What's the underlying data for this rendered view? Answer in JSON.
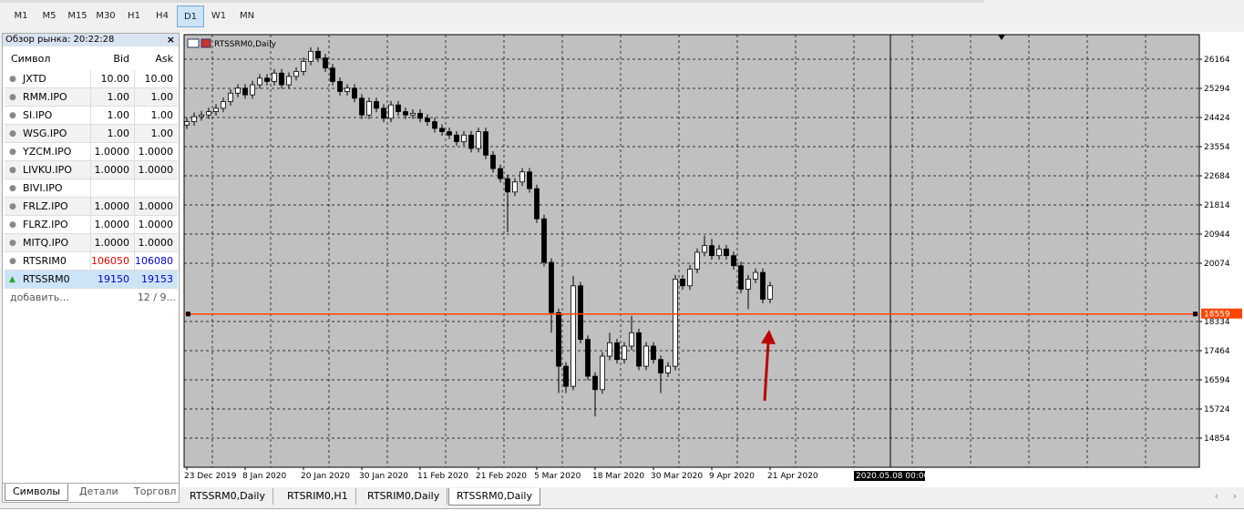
{
  "toolbar": {
    "timeframes": [
      "M1",
      "M5",
      "M15",
      "M30",
      "H1",
      "H4",
      "D1",
      "W1",
      "MN"
    ],
    "active": "D1"
  },
  "market_watch": {
    "title": "Обзор рынка: 20:22:28",
    "headers": [
      "Символ",
      "Bid",
      "Ask"
    ],
    "rows": [
      [
        "JXTD",
        "10.00",
        "10.00"
      ],
      [
        "RMM.IPO",
        "1.00",
        "1.00"
      ],
      [
        "SI.IPO",
        "1.00",
        "1.00"
      ],
      [
        "WSG.IPO",
        "1.00",
        "1.00"
      ],
      [
        "YZCM.IPO",
        "1.0000",
        "1.0000"
      ],
      [
        "LIVKU.IPO",
        "1.0000",
        "1.0000"
      ],
      [
        "BIVI.IPO",
        null,
        null
      ],
      [
        "FRLZ.IPO",
        "1.0000",
        "1.0000"
      ],
      [
        "FLRZ.IPO",
        "1.0000",
        "1.0000"
      ],
      [
        "MITQ.IPO",
        "1.0000",
        "1.0000"
      ],
      [
        "RTSRIM0",
        "106050",
        "106080"
      ],
      [
        "RTSSRM0",
        "19150",
        "19153"
      ]
    ],
    "add_label": "добавить...",
    "count": "12 / 9...",
    "tabs": [
      "Символы",
      "Детали",
      "Торговл"
    ]
  },
  "chart_tabs": [
    "RTSSRM0,Daily",
    "RTSRIM0,H1",
    "RTSRIM0,Daily",
    "RTSSRM0,Daily"
  ],
  "chart_data": {
    "type": "candlestick",
    "title": "RTSSRM0,Daily",
    "categories": [
      "23 Dec 2019",
      null,
      null,
      null,
      null,
      null,
      null,
      null,
      "8 Jan 2020",
      null,
      null,
      null,
      null,
      null,
      null,
      null,
      "20 Jan 2020",
      null,
      null,
      null,
      null,
      null,
      null,
      null,
      "30 Jan 2020",
      null,
      null,
      null,
      null,
      null,
      null,
      null,
      "11 Feb 2020",
      null,
      null,
      null,
      null,
      null,
      null,
      null,
      "21 Feb 2020",
      null,
      null,
      null,
      null,
      null,
      null,
      null,
      "5 Mar 2020",
      null,
      null,
      null,
      null,
      null,
      null,
      null,
      "18 Mar 2020",
      null,
      null,
      null,
      null,
      null,
      null,
      null,
      "30 Mar 2020",
      null,
      null,
      null,
      null,
      null,
      null,
      null,
      "9 Apr 2020",
      null,
      null,
      null,
      null,
      null,
      null,
      null,
      "21 Apr 2020"
    ],
    "ohlc": [
      [
        24200,
        24420,
        24080,
        24300
      ],
      [
        24300,
        24570,
        24180,
        24450
      ],
      [
        24450,
        24620,
        24330,
        24500
      ],
      [
        24500,
        24720,
        24380,
        24600
      ],
      [
        24600,
        24820,
        24480,
        24700
      ],
      [
        24700,
        25020,
        24580,
        24900
      ],
      [
        24900,
        25270,
        24780,
        25150
      ],
      [
        25150,
        25420,
        25030,
        25300
      ],
      [
        25300,
        25420,
        24980,
        25100
      ],
      [
        25100,
        25520,
        24980,
        25400
      ],
      [
        25400,
        25720,
        25280,
        25600
      ],
      [
        25600,
        25720,
        25380,
        25500
      ],
      [
        25500,
        25870,
        25380,
        25750
      ],
      [
        25750,
        25870,
        25280,
        25400
      ],
      [
        25400,
        25770,
        25280,
        25650
      ],
      [
        25650,
        25920,
        25530,
        25800
      ],
      [
        25800,
        26220,
        25680,
        26100
      ],
      [
        26100,
        26520,
        25980,
        26400
      ],
      [
        26400,
        26520,
        26080,
        26200
      ],
      [
        26200,
        26320,
        25780,
        25900
      ],
      [
        25900,
        26020,
        25380,
        25500
      ],
      [
        25500,
        25620,
        25080,
        25200
      ],
      [
        25200,
        25420,
        25080,
        25300
      ],
      [
        25300,
        25420,
        24880,
        25000
      ],
      [
        25000,
        25120,
        24380,
        24500
      ],
      [
        24500,
        25020,
        24380,
        24900
      ],
      [
        24900,
        25020,
        24580,
        24700
      ],
      [
        24700,
        24820,
        24280,
        24400
      ],
      [
        24400,
        24920,
        24280,
        24800
      ],
      [
        24800,
        24920,
        24480,
        24600
      ],
      [
        24600,
        24720,
        24380,
        24500
      ],
      [
        24500,
        24670,
        24380,
        24550
      ],
      [
        24550,
        24670,
        24280,
        24400
      ],
      [
        24400,
        24520,
        24180,
        24300
      ],
      [
        24300,
        24420,
        23980,
        24100
      ],
      [
        24100,
        24220,
        23880,
        24000
      ],
      [
        24000,
        24120,
        23780,
        23900
      ],
      [
        23900,
        24020,
        23580,
        23700
      ],
      [
        23700,
        24020,
        23580,
        23900
      ],
      [
        23900,
        24020,
        23380,
        23500
      ],
      [
        23500,
        24120,
        23380,
        24000
      ],
      [
        24000,
        24120,
        23180,
        23300
      ],
      [
        23300,
        23420,
        22780,
        22900
      ],
      [
        22900,
        23020,
        22480,
        22600
      ],
      [
        22600,
        22720,
        21000,
        22200
      ],
      [
        22200,
        22620,
        22080,
        22500
      ],
      [
        22500,
        22920,
        22380,
        22800
      ],
      [
        22800,
        22920,
        22180,
        22300
      ],
      [
        22300,
        22420,
        21280,
        21400
      ],
      [
        21400,
        21520,
        19980,
        20100
      ],
      [
        20100,
        20220,
        18000,
        18600
      ],
      [
        18600,
        18720,
        16200,
        17000
      ],
      [
        17000,
        17120,
        16200,
        16400
      ],
      [
        16400,
        19700,
        16280,
        19400
      ],
      [
        19400,
        19520,
        17680,
        17800
      ],
      [
        17800,
        17920,
        16580,
        16700
      ],
      [
        16700,
        16820,
        15500,
        16300
      ],
      [
        16300,
        17420,
        16180,
        17300
      ],
      [
        17300,
        18000,
        17180,
        17700
      ],
      [
        17700,
        17820,
        17080,
        17200
      ],
      [
        17200,
        17720,
        17080,
        17600
      ],
      [
        17600,
        18500,
        17480,
        18000
      ],
      [
        18000,
        18120,
        16880,
        17000
      ],
      [
        17000,
        17720,
        16880,
        17600
      ],
      [
        17600,
        17720,
        17080,
        17200
      ],
      [
        17200,
        17320,
        16200,
        16800
      ],
      [
        16800,
        17120,
        16680,
        17000
      ],
      [
        17000,
        19720,
        16880,
        19600
      ],
      [
        19600,
        19720,
        19280,
        19400
      ],
      [
        19400,
        20020,
        19280,
        19900
      ],
      [
        19900,
        20520,
        19780,
        20400
      ],
      [
        20400,
        20900,
        20280,
        20600
      ],
      [
        20600,
        20800,
        20180,
        20300
      ],
      [
        20300,
        20620,
        20180,
        20500
      ],
      [
        20500,
        20620,
        20180,
        20300
      ],
      [
        20300,
        20420,
        19880,
        20000
      ],
      [
        20000,
        20120,
        19180,
        19300
      ],
      [
        19300,
        19720,
        18700,
        19600
      ],
      [
        19600,
        19920,
        19480,
        19800
      ],
      [
        19800,
        19920,
        18880,
        19000
      ],
      [
        19000,
        19520,
        18880,
        19400
      ]
    ],
    "ylim": [
      13984,
      26898
    ],
    "yticks": [
      26164,
      25294,
      24424,
      23554,
      22684,
      21814,
      20944,
      20074,
      18334,
      17464,
      16594,
      15724,
      14854
    ],
    "grid": true,
    "up_color": "#ffffff",
    "down_color": "#000000",
    "price_line": {
      "value": 18559,
      "color": "#ff4500"
    },
    "crosshair_label": "2020.05.08 00:00"
  }
}
